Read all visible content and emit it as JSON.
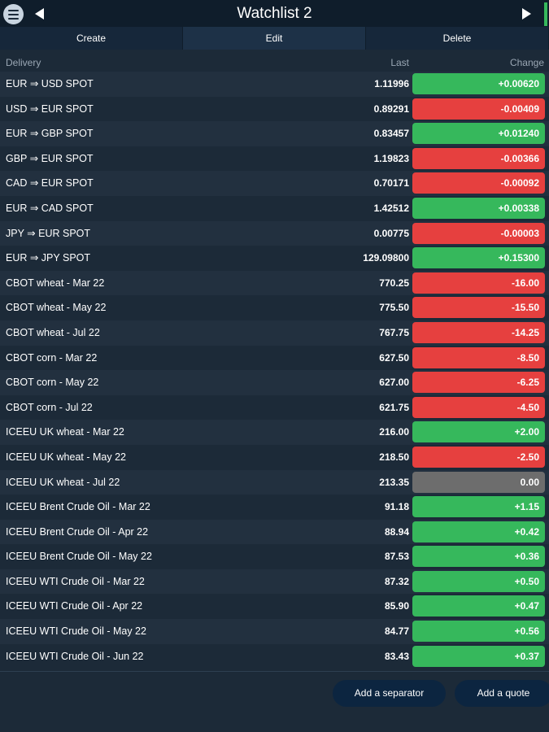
{
  "header": {
    "title": "Watchlist 2",
    "menu_icon": "hamburger-menu-icon",
    "prev_icon": "triangle-left-icon",
    "next_icon": "triangle-right-icon"
  },
  "actions": {
    "create": "Create",
    "edit": "Edit",
    "delete": "Delete"
  },
  "columns": {
    "delivery": "Delivery",
    "last": "Last",
    "change": "Change"
  },
  "colors": {
    "up": "#36b85c",
    "down": "#e6403f",
    "flat": "#6d6d6d",
    "background": "#1c2a38"
  },
  "quotes": [
    {
      "name": "EUR ⇒ USD SPOT",
      "last": "1.11996",
      "change": "+0.00620",
      "trend": "up"
    },
    {
      "name": "USD ⇒ EUR SPOT",
      "last": "0.89291",
      "change": "-0.00409",
      "trend": "down"
    },
    {
      "name": "EUR ⇒ GBP SPOT",
      "last": "0.83457",
      "change": "+0.01240",
      "trend": "up"
    },
    {
      "name": "GBP ⇒ EUR SPOT",
      "last": "1.19823",
      "change": "-0.00366",
      "trend": "down"
    },
    {
      "name": "CAD ⇒ EUR SPOT",
      "last": "0.70171",
      "change": "-0.00092",
      "trend": "down"
    },
    {
      "name": "EUR ⇒ CAD SPOT",
      "last": "1.42512",
      "change": "+0.00338",
      "trend": "up"
    },
    {
      "name": "JPY ⇒ EUR SPOT",
      "last": "0.00775",
      "change": "-0.00003",
      "trend": "down"
    },
    {
      "name": "EUR ⇒ JPY SPOT",
      "last": "129.09800",
      "change": "+0.15300",
      "trend": "up"
    },
    {
      "name": "CBOT wheat - Mar 22",
      "last": "770.25",
      "change": "-16.00",
      "trend": "down"
    },
    {
      "name": "CBOT wheat - May 22",
      "last": "775.50",
      "change": "-15.50",
      "trend": "down"
    },
    {
      "name": "CBOT wheat - Jul 22",
      "last": "767.75",
      "change": "-14.25",
      "trend": "down"
    },
    {
      "name": "CBOT corn - Mar 22",
      "last": "627.50",
      "change": "-8.50",
      "trend": "down"
    },
    {
      "name": "CBOT corn - May 22",
      "last": "627.00",
      "change": "-6.25",
      "trend": "down"
    },
    {
      "name": "CBOT corn - Jul 22",
      "last": "621.75",
      "change": "-4.50",
      "trend": "down"
    },
    {
      "name": "ICEEU UK wheat - Mar 22",
      "last": "216.00",
      "change": "+2.00",
      "trend": "up"
    },
    {
      "name": "ICEEU UK wheat - May 22",
      "last": "218.50",
      "change": "-2.50",
      "trend": "down"
    },
    {
      "name": "ICEEU UK wheat - Jul 22",
      "last": "213.35",
      "change": "0.00",
      "trend": "flat"
    },
    {
      "name": "ICEEU Brent Crude Oil - Mar 22",
      "last": "91.18",
      "change": "+1.15",
      "trend": "up"
    },
    {
      "name": "ICEEU Brent Crude Oil - Apr 22",
      "last": "88.94",
      "change": "+0.42",
      "trend": "up"
    },
    {
      "name": "ICEEU Brent Crude Oil - May 22",
      "last": "87.53",
      "change": "+0.36",
      "trend": "up"
    },
    {
      "name": "ICEEU WTI Crude Oil - Mar 22",
      "last": "87.32",
      "change": "+0.50",
      "trend": "up"
    },
    {
      "name": "ICEEU WTI Crude Oil - Apr 22",
      "last": "85.90",
      "change": "+0.47",
      "trend": "up"
    },
    {
      "name": "ICEEU WTI Crude Oil - May 22",
      "last": "84.77",
      "change": "+0.56",
      "trend": "up"
    },
    {
      "name": "ICEEU WTI Crude Oil - Jun 22",
      "last": "83.43",
      "change": "+0.37",
      "trend": "up"
    }
  ],
  "footer": {
    "add_separator": "Add a separator",
    "add_quote": "Add a quote"
  }
}
